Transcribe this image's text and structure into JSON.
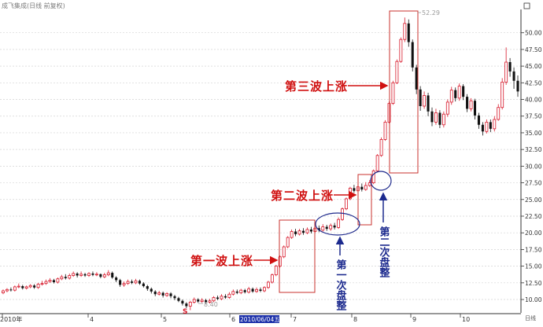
{
  "header": {
    "title": "成飞集成(日线 前复权)"
  },
  "colors": {
    "up": "#d8182a",
    "down": "#111111",
    "grid": "#d4d4d4",
    "axis": "#333333",
    "box": "#c8322e",
    "ellipse": "#1f2a8c",
    "wave_text": "#d01010",
    "consolidation_text": "#1c2a8e",
    "header_text": "#7a7a7a",
    "date_bg": "#1a2ea8"
  },
  "chart": {
    "y_ticks": [
      "50.00",
      "47.50",
      "45.00",
      "42.50",
      "40.00",
      "37.50",
      "35.00",
      "32.50",
      "30.00",
      "27.50",
      "25.00",
      "22.50",
      "20.00",
      "17.50",
      "15.00",
      "12.50",
      "10.00"
    ],
    "x_labels": [
      "2010年",
      "4",
      "5",
      "6",
      "2010/06/04五",
      "7",
      "8",
      "9",
      "10",
      "日线"
    ],
    "max_label": "52.29",
    "min_label": "8.40",
    "marker": "S"
  },
  "annotations": {
    "wave1": "第一波上涨",
    "wave2": "第二波上涨",
    "wave3": "第三波上涨",
    "consolidation1": "第一次盘整",
    "consolidation2": "第二次盘整"
  },
  "chart_data": {
    "type": "candlestick",
    "title": "成飞集成(日线 前复权)",
    "ylim": [
      8.0,
      53.5
    ],
    "y_ticks": [
      10.0,
      12.5,
      15.0,
      17.5,
      20.0,
      22.5,
      25.0,
      27.5,
      30.0,
      32.5,
      35.0,
      37.5,
      40.0,
      42.5,
      45.0,
      47.5,
      50.0
    ],
    "max_price": 52.29,
    "min_price": 8.4,
    "candles": [
      [
        11.0,
        11.3,
        10.8,
        11.5
      ],
      [
        11.3,
        11.5,
        11.1,
        11.7
      ],
      [
        11.5,
        11.4,
        11.2,
        11.8
      ],
      [
        11.4,
        11.9,
        11.2,
        12.1
      ],
      [
        11.9,
        12.0,
        11.7,
        12.4
      ],
      [
        12.0,
        11.7,
        11.5,
        12.2
      ],
      [
        11.7,
        11.9,
        11.5,
        12.1
      ],
      [
        11.9,
        12.1,
        11.7,
        12.3
      ],
      [
        12.1,
        11.8,
        11.6,
        12.3
      ],
      [
        11.8,
        12.3,
        11.6,
        12.5
      ],
      [
        12.3,
        12.4,
        12.1,
        12.8
      ],
      [
        12.4,
        12.7,
        12.2,
        13.0
      ],
      [
        12.7,
        12.9,
        12.5,
        13.2
      ],
      [
        12.9,
        12.6,
        12.4,
        13.1
      ],
      [
        12.6,
        13.1,
        12.4,
        13.3
      ],
      [
        13.1,
        13.4,
        12.9,
        13.7
      ],
      [
        13.4,
        13.2,
        13.0,
        13.8
      ],
      [
        13.2,
        13.6,
        13.0,
        13.9
      ],
      [
        13.6,
        13.9,
        13.4,
        14.2
      ],
      [
        13.9,
        13.6,
        13.3,
        14.1
      ],
      [
        13.6,
        13.8,
        13.4,
        14.2
      ],
      [
        13.8,
        13.6,
        13.4,
        14.0
      ],
      [
        13.6,
        13.9,
        13.4,
        14.1
      ],
      [
        13.9,
        13.7,
        13.5,
        14.2
      ],
      [
        13.7,
        13.8,
        13.5,
        14.1
      ],
      [
        13.8,
        13.4,
        13.2,
        13.9
      ],
      [
        13.4,
        13.7,
        13.2,
        14.0
      ],
      [
        13.7,
        14.0,
        13.5,
        14.4
      ],
      [
        14.0,
        13.3,
        13.1,
        14.2
      ],
      [
        13.3,
        12.9,
        12.6,
        13.5
      ],
      [
        12.9,
        12.2,
        11.9,
        13.1
      ],
      [
        12.2,
        12.4,
        11.9,
        12.7
      ],
      [
        12.4,
        12.7,
        12.2,
        13.0
      ],
      [
        12.7,
        12.5,
        12.3,
        13.0
      ],
      [
        12.5,
        12.8,
        12.3,
        13.1
      ],
      [
        12.8,
        12.4,
        12.2,
        13.0
      ],
      [
        12.4,
        12.0,
        11.8,
        12.6
      ],
      [
        12.0,
        11.6,
        11.3,
        12.2
      ],
      [
        11.6,
        11.2,
        10.9,
        11.8
      ],
      [
        11.2,
        10.8,
        10.5,
        11.4
      ],
      [
        10.8,
        11.0,
        10.6,
        11.3
      ],
      [
        11.0,
        10.6,
        10.3,
        11.2
      ],
      [
        10.6,
        10.9,
        10.4,
        11.1
      ],
      [
        10.9,
        10.5,
        10.2,
        11.1
      ],
      [
        10.5,
        10.2,
        9.9,
        10.7
      ],
      [
        10.2,
        9.8,
        9.6,
        10.4
      ],
      [
        9.8,
        9.4,
        9.1,
        10.0
      ],
      [
        9.4,
        9.0,
        8.7,
        9.6
      ],
      [
        9.0,
        9.6,
        8.4,
        9.8
      ],
      [
        9.6,
        10.0,
        9.4,
        10.3
      ],
      [
        10.0,
        9.7,
        9.5,
        10.2
      ],
      [
        9.7,
        9.9,
        9.5,
        10.2
      ],
      [
        9.9,
        9.6,
        9.4,
        10.1
      ],
      [
        9.6,
        9.8,
        9.4,
        10.1
      ],
      [
        9.8,
        10.3,
        9.6,
        10.5
      ],
      [
        10.3,
        10.1,
        9.9,
        10.6
      ],
      [
        10.1,
        10.5,
        9.9,
        10.8
      ],
      [
        10.5,
        10.3,
        10.1,
        10.8
      ],
      [
        10.3,
        10.8,
        10.1,
        11.1
      ],
      [
        10.8,
        11.2,
        10.6,
        11.5
      ],
      [
        11.2,
        11.0,
        10.8,
        11.5
      ],
      [
        11.0,
        11.4,
        10.8,
        11.6
      ],
      [
        11.4,
        11.1,
        10.9,
        11.6
      ],
      [
        11.1,
        11.6,
        10.9,
        11.9
      ],
      [
        11.6,
        11.2,
        11.0,
        11.8
      ],
      [
        11.2,
        11.5,
        11.0,
        11.8
      ],
      [
        11.5,
        11.3,
        11.1,
        11.8
      ],
      [
        11.3,
        11.8,
        11.1,
        12.0
      ],
      [
        11.8,
        12.6,
        11.6,
        12.8
      ],
      [
        12.6,
        13.7,
        12.4,
        13.9
      ],
      [
        13.7,
        15.0,
        13.5,
        15.2
      ],
      [
        15.0,
        16.4,
        14.8,
        16.6
      ],
      [
        16.4,
        17.9,
        16.2,
        18.1
      ],
      [
        17.9,
        19.3,
        17.7,
        19.5
      ],
      [
        19.3,
        20.2,
        19.1,
        20.5
      ],
      [
        20.2,
        19.8,
        19.5,
        20.6
      ],
      [
        19.8,
        20.3,
        19.6,
        20.6
      ],
      [
        20.3,
        20.0,
        19.7,
        20.7
      ],
      [
        20.0,
        20.5,
        19.8,
        20.8
      ],
      [
        20.5,
        20.2,
        19.9,
        20.9
      ],
      [
        20.2,
        20.7,
        20.0,
        21.0
      ],
      [
        20.7,
        20.4,
        20.1,
        21.1
      ],
      [
        20.4,
        20.9,
        20.2,
        21.3
      ],
      [
        20.9,
        20.6,
        20.3,
        21.2
      ],
      [
        20.6,
        21.1,
        20.3,
        21.4
      ],
      [
        21.1,
        20.8,
        20.5,
        21.5
      ],
      [
        20.8,
        22.0,
        20.6,
        22.3
      ],
      [
        22.0,
        23.6,
        21.8,
        23.8
      ],
      [
        23.6,
        25.1,
        23.4,
        25.3
      ],
      [
        25.1,
        26.7,
        24.9,
        26.9
      ],
      [
        26.7,
        26.3,
        26.0,
        27.2
      ],
      [
        26.3,
        26.9,
        26.0,
        27.3
      ],
      [
        26.9,
        26.5,
        26.2,
        27.4
      ],
      [
        26.5,
        27.1,
        26.3,
        27.6
      ],
      [
        27.1,
        27.5,
        26.9,
        27.9
      ],
      [
        27.5,
        29.3,
        27.3,
        29.5
      ],
      [
        29.3,
        31.6,
        29.1,
        31.8
      ],
      [
        31.6,
        34.0,
        31.4,
        34.3
      ],
      [
        34.0,
        36.6,
        33.8,
        36.9
      ],
      [
        36.6,
        39.4,
        36.4,
        39.7
      ],
      [
        39.4,
        42.5,
        39.2,
        42.8
      ],
      [
        42.5,
        45.7,
        42.3,
        46.0
      ],
      [
        45.7,
        49.0,
        45.5,
        49.3
      ],
      [
        49.0,
        51.4,
        48.6,
        52.29
      ],
      [
        51.4,
        48.6,
        47.9,
        52.0
      ],
      [
        48.6,
        44.8,
        44.2,
        49.0
      ],
      [
        44.8,
        41.5,
        40.8,
        45.2
      ],
      [
        41.5,
        39.0,
        38.3,
        42.0
      ],
      [
        39.0,
        40.6,
        38.6,
        41.2
      ],
      [
        40.6,
        38.2,
        37.5,
        41.0
      ],
      [
        38.2,
        36.6,
        36.0,
        38.8
      ],
      [
        36.6,
        38.0,
        36.2,
        38.6
      ],
      [
        38.0,
        36.2,
        35.7,
        38.4
      ],
      [
        36.2,
        37.8,
        35.8,
        38.2
      ],
      [
        37.8,
        39.6,
        37.4,
        40.0
      ],
      [
        39.6,
        41.4,
        39.2,
        41.9
      ],
      [
        41.4,
        40.2,
        39.7,
        41.8
      ],
      [
        40.2,
        42.0,
        39.8,
        42.4
      ],
      [
        42.0,
        40.4,
        39.9,
        42.3
      ],
      [
        40.4,
        38.6,
        38.1,
        40.8
      ],
      [
        38.6,
        39.8,
        38.2,
        40.2
      ],
      [
        39.8,
        37.6,
        37.0,
        40.1
      ],
      [
        37.6,
        36.2,
        35.6,
        38.0
      ],
      [
        36.2,
        35.2,
        34.6,
        36.6
      ],
      [
        35.2,
        36.6,
        34.9,
        37.0
      ],
      [
        36.6,
        35.6,
        35.1,
        37.0
      ],
      [
        35.6,
        37.0,
        35.2,
        37.5
      ],
      [
        37.0,
        38.8,
        36.8,
        39.3
      ],
      [
        38.8,
        42.6,
        38.5,
        43.2
      ],
      [
        42.6,
        45.6,
        42.2,
        47.8
      ],
      [
        45.6,
        44.2,
        43.4,
        46.2
      ],
      [
        44.2,
        42.8,
        41.6,
        44.8
      ],
      [
        42.8,
        41.2,
        40.4,
        43.6
      ]
    ]
  }
}
